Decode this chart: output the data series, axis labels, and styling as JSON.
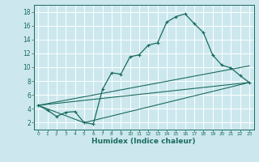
{
  "title": "",
  "xlabel": "Humidex (Indice chaleur)",
  "bg_color": "#cce8ee",
  "grid_color": "#ffffff",
  "line_color": "#1a6b5e",
  "xlim": [
    -0.5,
    23.5
  ],
  "ylim": [
    1.0,
    19.0
  ],
  "yticks": [
    2,
    4,
    6,
    8,
    10,
    12,
    14,
    16,
    18
  ],
  "xticks": [
    0,
    1,
    2,
    3,
    4,
    5,
    6,
    7,
    8,
    9,
    10,
    11,
    12,
    13,
    14,
    15,
    16,
    17,
    18,
    19,
    20,
    21,
    22,
    23
  ],
  "curve1_x": [
    0,
    1,
    2,
    3,
    4,
    5,
    6,
    7,
    8,
    9,
    10,
    11,
    12,
    13,
    14,
    15,
    16,
    17,
    18,
    19,
    20,
    21,
    22,
    23
  ],
  "curve1_y": [
    4.5,
    3.8,
    2.9,
    3.5,
    3.6,
    2.0,
    1.8,
    6.8,
    9.2,
    9.0,
    11.5,
    11.8,
    13.2,
    13.5,
    16.5,
    17.3,
    17.7,
    16.3,
    15.0,
    11.8,
    10.3,
    9.9,
    8.8,
    7.8
  ],
  "curve2_x": [
    0,
    23
  ],
  "curve2_y": [
    4.5,
    7.8
  ],
  "curve3_x": [
    0,
    5,
    23
  ],
  "curve3_y": [
    4.5,
    2.0,
    7.8
  ],
  "curve4_x": [
    0,
    23
  ],
  "curve4_y": [
    4.5,
    10.2
  ]
}
